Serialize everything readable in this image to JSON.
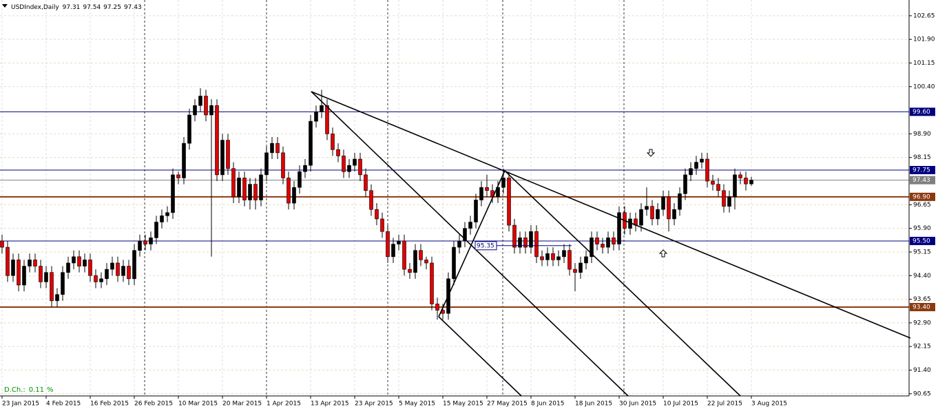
{
  "chart_data": {
    "type": "candlestick",
    "symbol": "USDIndex,Daily",
    "indicator_label": "D.Ch.:",
    "indicator_value": 0.11,
    "indicator_unit": "%",
    "annotation_value": 95.35,
    "up_color": "#000000",
    "down_color": "#e00000",
    "ylim": [
      90.58,
      103.15
    ],
    "yticks": [
      102.65,
      {
        "value": 101.9,
        "label": "101.90"
      },
      101.15,
      {
        "value": 100.4,
        "label": "100.40"
      },
      {
        "value": 98.9,
        "label": "98.90"
      },
      98.15,
      96.65,
      {
        "value": 95.9,
        "label": "95.90"
      },
      95.15,
      {
        "value": 94.4,
        "label": "94.40"
      },
      93.65,
      {
        "value": 92.9,
        "label": "92.90"
      },
      92.15,
      {
        "value": 91.4,
        "label": "91.40"
      },
      90.65
    ],
    "grid": true,
    "levels": [
      {
        "value": 99.6,
        "label": "99.60",
        "color": "#000080"
      },
      {
        "value": 97.75,
        "label": "97.75",
        "color": "#000080"
      },
      {
        "value": 96.9,
        "label": "96.90",
        "color": "#8b3a0f"
      },
      {
        "value": 95.5,
        "label": "95.50",
        "color": "#000080"
      },
      {
        "value": 93.4,
        "label": "93.40",
        "color": "#8b3a0f"
      }
    ],
    "categories": [
      "23 Jan 2015",
      null,
      null,
      null,
      null,
      null,
      null,
      null,
      "4 Feb 2015",
      null,
      null,
      null,
      null,
      null,
      null,
      null,
      "16 Feb 2015",
      null,
      null,
      null,
      null,
      null,
      null,
      null,
      "26 Feb 2015",
      null,
      null,
      null,
      null,
      null,
      null,
      null,
      "10 Mar 2015",
      null,
      null,
      null,
      null,
      null,
      null,
      null,
      "20 Mar 2015",
      null,
      null,
      null,
      null,
      null,
      null,
      null,
      "1 Apr 2015",
      null,
      null,
      null,
      null,
      null,
      null,
      null,
      "13 Apr 2015",
      null,
      null,
      null,
      null,
      null,
      null,
      null,
      "23 Apr 2015",
      null,
      null,
      null,
      null,
      null,
      null,
      null,
      "5 May 2015",
      null,
      null,
      null,
      null,
      null,
      null,
      null,
      "15 May 2015",
      null,
      null,
      null,
      null,
      null,
      null,
      null,
      "27 May 2015",
      null,
      null,
      null,
      null,
      null,
      null,
      null,
      "8 Jun 2015",
      null,
      null,
      null,
      null,
      null,
      null,
      null,
      "18 Jun 2015",
      null,
      null,
      null,
      null,
      null,
      null,
      null,
      "30 Jun 2015",
      null,
      null,
      null,
      null,
      null,
      null,
      null,
      "10 Jul 2015",
      null,
      null,
      null,
      null,
      null,
      null,
      null,
      "22 Jul 2015",
      null,
      null,
      null,
      null,
      null,
      null,
      null,
      "3 Aug 2015"
    ],
    "open": [
      95.5,
      95.3,
      94.4,
      94.9,
      94.1,
      94.7,
      94.9,
      94.7,
      94.2,
      94.5,
      93.6,
      93.8,
      94.5,
      94.8,
      95.0,
      94.7,
      94.9,
      94.4,
      94.2,
      94.3,
      94.6,
      94.8,
      94.4,
      94.7,
      94.3,
      95.2,
      95.5,
      95.4,
      95.6,
      96.1,
      96.3,
      96.4,
      97.6,
      97.5,
      98.6,
      99.5,
      99.8,
      100.1,
      99.5,
      99.8,
      97.6,
      98.7,
      97.8,
      96.9,
      97.5,
      96.8,
      97.3,
      96.8,
      97.6,
      98.3,
      98.6,
      98.3,
      97.5,
      96.7,
      97.2,
      97.7,
      97.9,
      99.3,
      99.6,
      99.8,
      98.9,
      98.4,
      98.2,
      97.7,
      97.9,
      98.1,
      97.6,
      97.1,
      96.5,
      96.2,
      95.8,
      95.0,
      95.4,
      95.5,
      94.6,
      94.5,
      95.2,
      94.9,
      94.8,
      93.5,
      93.3,
      93.2,
      94.3,
      95.3,
      95.5,
      95.9,
      96.1,
      96.8,
      97.2,
      97.1,
      96.9,
      97.2,
      97.5,
      96.0,
      95.3,
      95.6,
      95.3,
      95.8,
      95.0,
      94.9,
      95.1,
      94.9,
      95.0,
      95.2,
      94.6,
      94.5,
      94.8,
      95.0,
      95.6,
      95.4,
      95.3,
      95.6,
      95.4,
      96.4,
      95.9,
      96.2,
      96.0,
      96.5,
      96.6,
      96.2,
      96.5,
      96.9,
      96.2,
      96.5,
      97.0,
      97.6,
      97.8,
      98.0,
      98.1,
      97.4,
      97.3,
      97.1,
      96.6,
      96.9,
      97.6,
      97.5,
      97.31
    ],
    "high": [
      95.7,
      95.5,
      95.1,
      95.1,
      94.9,
      95.1,
      95.1,
      94.9,
      94.7,
      94.7,
      94.0,
      94.7,
      95.0,
      95.2,
      95.2,
      95.1,
      95.1,
      94.6,
      94.5,
      94.8,
      95.0,
      95.0,
      94.9,
      94.9,
      95.4,
      95.7,
      95.7,
      95.8,
      96.3,
      96.5,
      96.6,
      97.8,
      97.7,
      98.8,
      99.7,
      100.0,
      100.35,
      100.3,
      100.0,
      100.0,
      98.9,
      98.9,
      98.0,
      97.7,
      97.7,
      97.5,
      97.5,
      97.8,
      98.5,
      98.8,
      98.8,
      98.5,
      97.7,
      97.4,
      97.9,
      98.1,
      99.5,
      99.8,
      100.3,
      100.0,
      99.1,
      98.6,
      98.4,
      98.1,
      98.3,
      98.3,
      97.8,
      97.3,
      96.7,
      96.4,
      96.0,
      95.6,
      95.7,
      95.7,
      94.8,
      95.4,
      95.4,
      95.0,
      95.0,
      93.7,
      93.5,
      94.5,
      95.5,
      95.7,
      96.1,
      96.3,
      97.0,
      97.4,
      97.6,
      97.3,
      97.4,
      97.8,
      97.7,
      96.2,
      95.8,
      95.8,
      96.0,
      96.0,
      95.2,
      95.3,
      95.3,
      95.2,
      95.4,
      95.4,
      94.8,
      95.0,
      95.2,
      95.8,
      95.8,
      95.6,
      95.8,
      95.8,
      96.6,
      96.6,
      96.4,
      96.4,
      96.7,
      97.2,
      96.8,
      96.7,
      97.1,
      97.1,
      96.7,
      97.2,
      97.8,
      98.0,
      98.2,
      98.3,
      98.3,
      97.6,
      97.5,
      97.3,
      97.1,
      97.8,
      97.7,
      97.7,
      97.54
    ],
    "low": [
      95.1,
      94.2,
      94.2,
      93.9,
      93.9,
      94.5,
      94.5,
      94.0,
      94.0,
      93.4,
      93.4,
      93.6,
      94.3,
      94.6,
      94.5,
      94.5,
      94.2,
      94.0,
      94.0,
      94.1,
      94.4,
      94.2,
      94.2,
      94.1,
      94.1,
      95.0,
      95.2,
      95.2,
      95.4,
      95.9,
      96.1,
      96.2,
      97.3,
      97.3,
      98.4,
      99.3,
      99.6,
      99.3,
      95.0,
      97.4,
      97.4,
      97.6,
      96.7,
      96.7,
      96.6,
      96.5,
      96.5,
      96.6,
      97.4,
      98.1,
      98.1,
      97.3,
      96.5,
      96.5,
      97.0,
      97.5,
      97.7,
      99.1,
      99.4,
      98.7,
      98.2,
      98.0,
      97.5,
      97.5,
      97.7,
      97.4,
      96.9,
      96.3,
      96.0,
      95.6,
      94.8,
      94.8,
      95.2,
      94.4,
      94.3,
      94.3,
      94.7,
      94.6,
      93.3,
      93.0,
      93.0,
      93.0,
      94.1,
      95.1,
      95.3,
      95.7,
      95.9,
      96.6,
      96.9,
      96.7,
      96.7,
      97.0,
      95.8,
      95.1,
      95.1,
      95.1,
      95.1,
      94.8,
      94.7,
      94.7,
      94.7,
      94.7,
      94.8,
      94.4,
      93.9,
      94.3,
      94.6,
      94.8,
      95.2,
      95.1,
      95.1,
      95.2,
      95.2,
      95.7,
      95.7,
      95.8,
      95.8,
      96.3,
      96.0,
      96.0,
      96.3,
      95.8,
      96.0,
      96.3,
      96.8,
      97.4,
      97.6,
      97.8,
      97.2,
      97.1,
      96.9,
      96.4,
      96.4,
      96.5,
      97.3,
      97.1,
      97.25
    ],
    "close": [
      95.3,
      94.4,
      94.9,
      94.1,
      94.7,
      94.9,
      94.7,
      94.2,
      94.5,
      93.6,
      93.8,
      94.5,
      94.8,
      95.0,
      94.7,
      94.9,
      94.4,
      94.2,
      94.3,
      94.6,
      94.8,
      94.4,
      94.7,
      94.3,
      95.2,
      95.5,
      95.4,
      95.6,
      96.1,
      96.3,
      96.4,
      97.6,
      97.5,
      98.6,
      99.5,
      99.8,
      100.1,
      99.5,
      99.8,
      97.6,
      98.7,
      97.8,
      96.9,
      97.5,
      96.8,
      97.3,
      96.8,
      97.6,
      98.3,
      98.6,
      98.3,
      97.5,
      96.7,
      97.2,
      97.7,
      97.9,
      99.3,
      99.6,
      99.8,
      98.9,
      98.4,
      98.2,
      97.7,
      97.9,
      98.1,
      97.6,
      97.1,
      96.5,
      96.2,
      95.8,
      95.0,
      95.4,
      95.5,
      94.6,
      94.5,
      95.2,
      94.9,
      94.8,
      93.5,
      93.3,
      93.2,
      94.3,
      95.3,
      95.5,
      95.9,
      96.1,
      96.8,
      97.2,
      97.1,
      96.9,
      97.2,
      97.5,
      96.0,
      95.3,
      95.6,
      95.3,
      95.8,
      95.0,
      94.9,
      95.1,
      94.9,
      95.0,
      95.2,
      94.6,
      94.5,
      94.8,
      95.0,
      95.6,
      95.4,
      95.3,
      95.6,
      95.4,
      96.4,
      95.9,
      96.2,
      96.0,
      96.5,
      96.6,
      96.2,
      96.5,
      96.9,
      96.2,
      96.5,
      97.0,
      97.6,
      97.8,
      98.0,
      98.1,
      97.4,
      97.3,
      97.1,
      96.6,
      96.9,
      97.6,
      97.5,
      97.31,
      97.43
    ]
  }
}
